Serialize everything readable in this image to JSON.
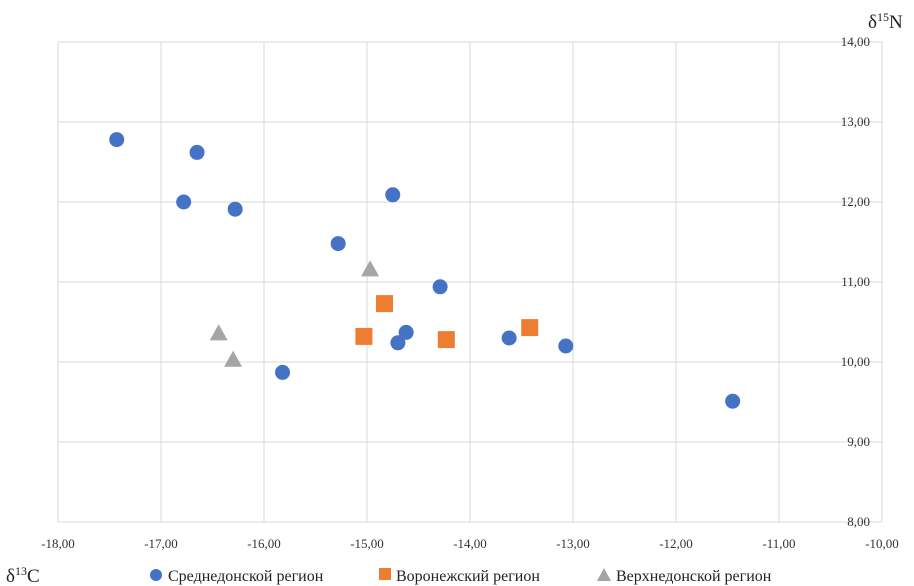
{
  "chart_data": {
    "type": "scatter",
    "xlabel": "δ13C",
    "ylabel": "δ15N",
    "xlabel_parts": {
      "base": "δ",
      "sup": "13",
      "rest": "C"
    },
    "ylabel_parts": {
      "base": "δ",
      "sup": "15",
      "rest": "N"
    },
    "xlim": [
      -18,
      -10
    ],
    "ylim": [
      8,
      14
    ],
    "xticks": [
      -18,
      -17,
      -16,
      -15,
      -14,
      -13,
      -12,
      -11,
      -10
    ],
    "yticks": [
      8,
      9,
      10,
      11,
      12,
      13,
      14
    ],
    "xtick_labels": [
      "-18,00",
      "-17,00",
      "-16,00",
      "-15,00",
      "-14,00",
      "-13,00",
      "-12,00",
      "-11,00",
      "-10,00"
    ],
    "ytick_labels": [
      "8,00",
      "9,00",
      "10,00",
      "11,00",
      "12,00",
      "13,00",
      "14,00"
    ],
    "grid": true,
    "y_axis_side": "right",
    "legend_position": "bottom",
    "series": [
      {
        "name": "Среднедонской регион",
        "marker": "circle",
        "color": "#4472c4",
        "points": [
          [
            -17.43,
            12.78
          ],
          [
            -16.65,
            12.62
          ],
          [
            -16.78,
            12.0
          ],
          [
            -16.28,
            11.91
          ],
          [
            -14.75,
            12.09
          ],
          [
            -15.28,
            11.48
          ],
          [
            -14.29,
            10.94
          ],
          [
            -14.62,
            10.37
          ],
          [
            -14.7,
            10.24
          ],
          [
            -13.62,
            10.3
          ],
          [
            -13.07,
            10.2
          ],
          [
            -15.82,
            9.87
          ],
          [
            -11.45,
            9.51
          ]
        ]
      },
      {
        "name": "Воронежский регион",
        "marker": "square",
        "color": "#ed7d31",
        "points": [
          [
            -14.83,
            10.73
          ],
          [
            -15.03,
            10.32
          ],
          [
            -14.23,
            10.28
          ],
          [
            -13.42,
            10.43
          ]
        ]
      },
      {
        "name": "Верхнедонской регион",
        "marker": "triangle",
        "color": "#a5a5a5",
        "points": [
          [
            -14.97,
            11.16
          ],
          [
            -16.44,
            10.36
          ],
          [
            -16.3,
            10.03
          ]
        ]
      }
    ]
  }
}
